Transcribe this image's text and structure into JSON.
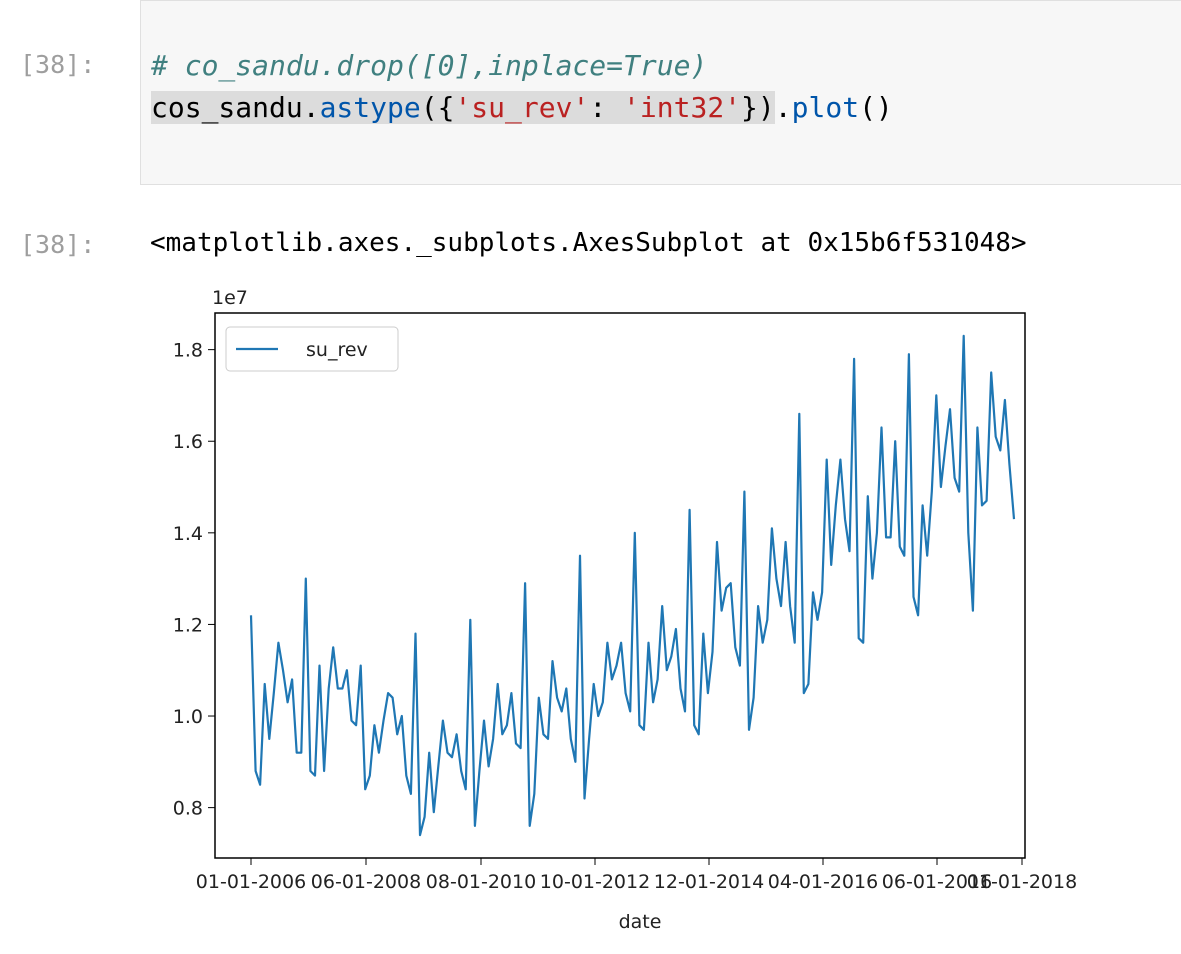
{
  "input_cell": {
    "prompt": "[38]:",
    "comment": "# co_sandu.drop([0],inplace=True)",
    "code": {
      "obj": "cos_sandu.",
      "method": "astype",
      "args_open": "({",
      "key": "'su_rev'",
      "colon": ": ",
      "val": "'int32'",
      "args_close": "})",
      "dot": ".",
      "method2": "plot",
      "call": "()"
    }
  },
  "output_cell": {
    "prompt": "[38]:",
    "text": "<matplotlib.axes._subplots.AxesSubplot at 0x15b6f531048>"
  },
  "colors": {
    "line": "#1f77b4",
    "prompt": "#9e9e9e",
    "string": "#ba2121",
    "function": "#0055aa",
    "comment": "#408080"
  },
  "chart_data": {
    "type": "line",
    "xlabel": "date",
    "offset_label": "1e7",
    "x_tick_labels": [
      "01-01-2006",
      "06-01-2008",
      "08-01-2010",
      "10-01-2012",
      "12-01-2014",
      "04-01-2016",
      "06-01-2016",
      "01-01-2018"
    ],
    "y_ticks": [
      0.8,
      1.0,
      1.2,
      1.4,
      1.6,
      1.8
    ],
    "y_tick_labels": [
      "0.8",
      "1.0",
      "1.2",
      "1.4",
      "1.6",
      "1.8"
    ],
    "ylim": [
      0.69,
      1.88
    ],
    "legend": "upper left",
    "series": [
      {
        "name": "su_rev",
        "values": [
          1.22,
          0.88,
          0.85,
          1.07,
          0.95,
          1.05,
          1.16,
          1.1,
          1.03,
          1.08,
          0.92,
          0.92,
          1.3,
          0.88,
          0.87,
          1.11,
          0.88,
          1.06,
          1.15,
          1.06,
          1.06,
          1.1,
          0.99,
          0.98,
          1.11,
          0.84,
          0.87,
          0.98,
          0.92,
          0.99,
          1.05,
          1.04,
          0.96,
          1.0,
          0.87,
          0.83,
          1.18,
          0.74,
          0.78,
          0.92,
          0.79,
          0.89,
          0.99,
          0.92,
          0.91,
          0.96,
          0.88,
          0.84,
          1.21,
          0.76,
          0.88,
          0.99,
          0.89,
          0.95,
          1.07,
          0.96,
          0.98,
          1.05,
          0.94,
          0.93,
          1.29,
          0.76,
          0.83,
          1.04,
          0.96,
          0.95,
          1.12,
          1.04,
          1.01,
          1.06,
          0.95,
          0.9,
          1.35,
          0.82,
          0.95,
          1.07,
          1.0,
          1.03,
          1.16,
          1.08,
          1.11,
          1.16,
          1.05,
          1.01,
          1.4,
          0.98,
          0.97,
          1.16,
          1.03,
          1.08,
          1.24,
          1.1,
          1.13,
          1.19,
          1.06,
          1.01,
          1.45,
          0.98,
          0.96,
          1.18,
          1.05,
          1.14,
          1.38,
          1.23,
          1.28,
          1.29,
          1.15,
          1.11,
          1.49,
          0.97,
          1.04,
          1.24,
          1.16,
          1.21,
          1.41,
          1.3,
          1.24,
          1.38,
          1.24,
          1.16,
          1.66,
          1.05,
          1.07,
          1.27,
          1.21,
          1.27,
          1.56,
          1.33,
          1.46,
          1.56,
          1.43,
          1.36,
          1.78,
          1.17,
          1.16,
          1.48,
          1.3,
          1.4,
          1.63,
          1.39,
          1.39,
          1.6,
          1.37,
          1.35,
          1.79,
          1.26,
          1.22,
          1.46,
          1.35,
          1.49,
          1.7,
          1.5,
          1.59,
          1.67,
          1.52,
          1.49,
          1.83,
          1.4,
          1.23,
          1.63,
          1.46,
          1.47,
          1.75,
          1.61,
          1.58,
          1.69,
          1.55,
          1.43
        ]
      }
    ]
  }
}
